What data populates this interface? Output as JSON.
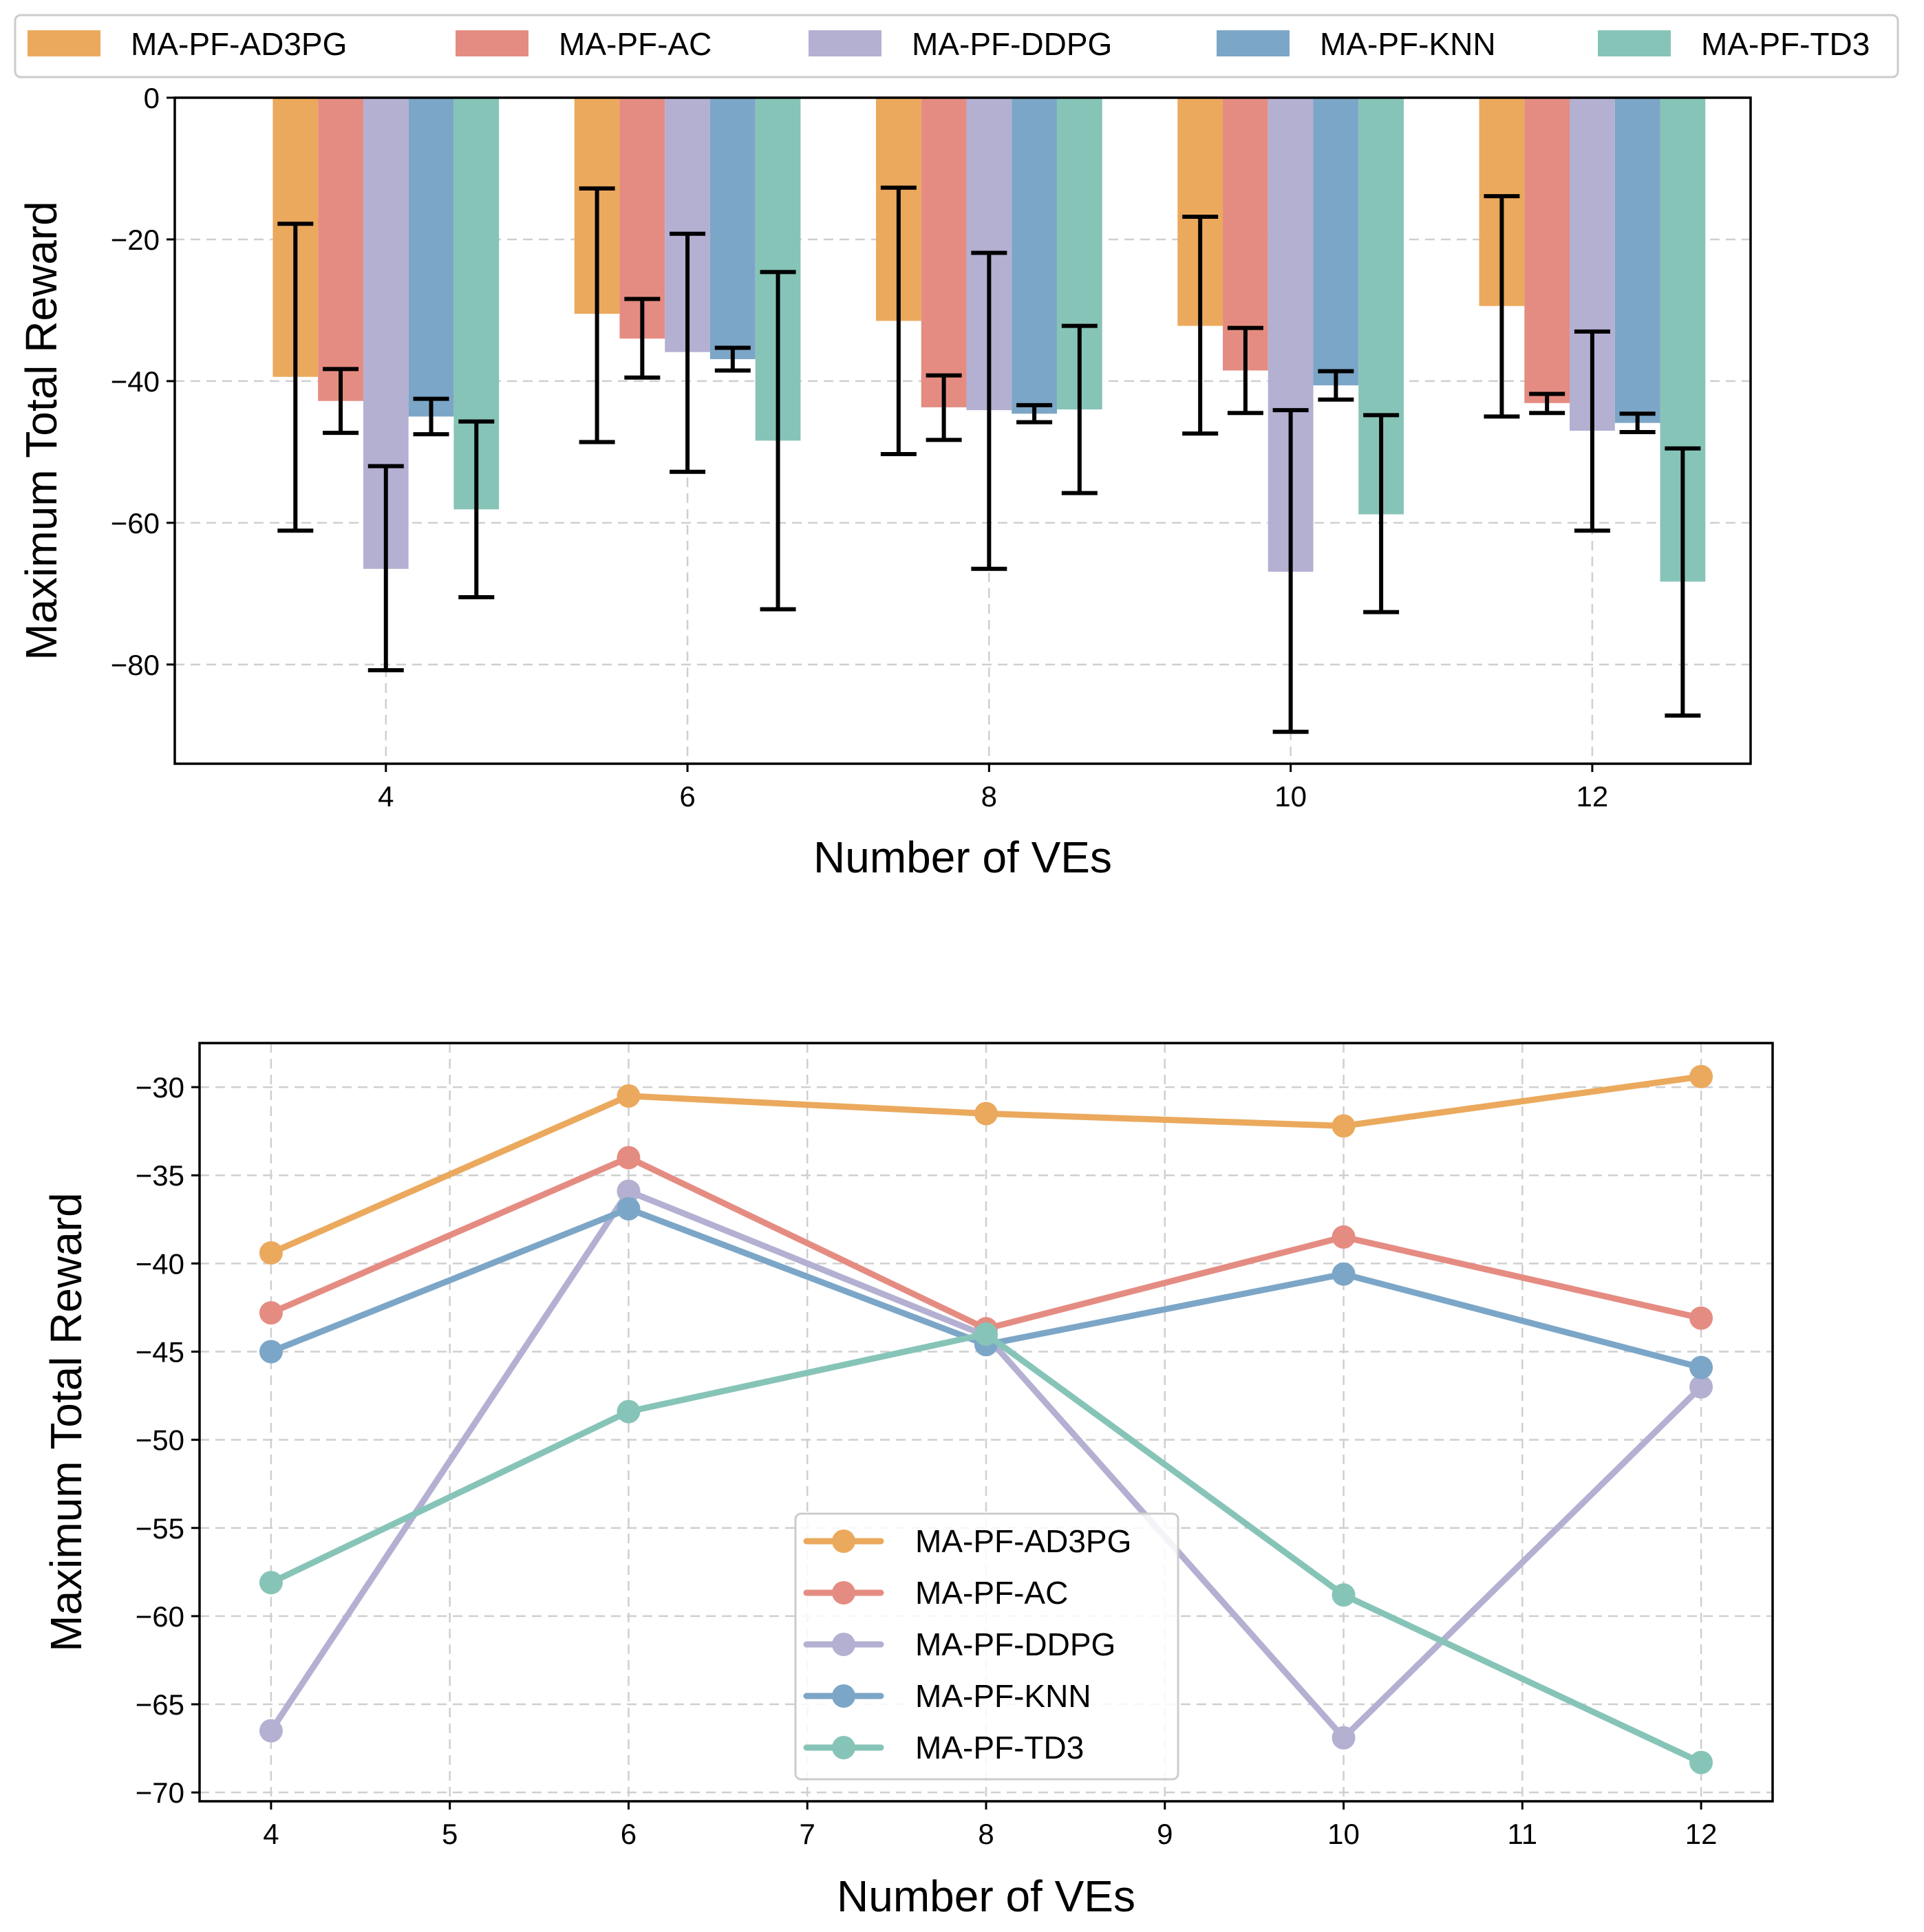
{
  "chart_data": [
    {
      "type": "bar",
      "xlabel": "Number of VEs",
      "ylabel": "Maximum Total Reward",
      "categories": [
        "4",
        "6",
        "8",
        "10",
        "12"
      ],
      "ylim": [
        -94,
        0
      ],
      "yticks": [
        0,
        -20,
        -40,
        -60,
        -80
      ],
      "yticklabels": [
        "0",
        "−20",
        "−40",
        "−60",
        "−80"
      ],
      "grid": true,
      "legend_position": "top, outside, single row",
      "series": [
        {
          "name": "MA-PF-AD3PG",
          "color": "#EBA95D",
          "values": [
            -39.4,
            -30.5,
            -31.5,
            -32.2,
            -29.4
          ],
          "err_low": [
            -61.1,
            -48.6,
            -50.3,
            -47.4,
            -45.0
          ],
          "err_high": [
            -17.8,
            -12.8,
            -12.7,
            -16.8,
            -13.9
          ]
        },
        {
          "name": "MA-PF-AC",
          "color": "#E58C82",
          "values": [
            -42.8,
            -34.0,
            -43.7,
            -38.5,
            -43.1
          ],
          "err_low": [
            -47.3,
            -39.5,
            -48.3,
            -44.5,
            -44.5
          ],
          "err_high": [
            -38.3,
            -28.4,
            -39.2,
            -32.5,
            -41.8
          ]
        },
        {
          "name": "MA-PF-DDPG",
          "color": "#B3B0D2",
          "values": [
            -66.5,
            -35.9,
            -44.1,
            -66.9,
            -47.0
          ],
          "err_low": [
            -80.8,
            -52.8,
            -66.5,
            -89.5,
            -61.1
          ],
          "err_high": [
            -52.0,
            -19.2,
            -21.9,
            -44.1,
            -33.0
          ]
        },
        {
          "name": "MA-PF-KNN",
          "color": "#7CA6C7",
          "values": [
            -45.0,
            -36.9,
            -44.6,
            -40.6,
            -45.9
          ],
          "err_low": [
            -47.5,
            -38.5,
            -45.8,
            -42.6,
            -47.2
          ],
          "err_high": [
            -42.5,
            -35.3,
            -43.4,
            -38.6,
            -44.6
          ]
        },
        {
          "name": "MA-PF-TD3",
          "color": "#87C4B8",
          "values": [
            -58.1,
            -48.4,
            -44.0,
            -58.8,
            -68.3
          ],
          "err_low": [
            -70.5,
            -72.2,
            -55.8,
            -72.6,
            -87.2
          ],
          "err_high": [
            -45.7,
            -24.6,
            -32.2,
            -44.8,
            -49.5
          ]
        }
      ]
    },
    {
      "type": "line",
      "xlabel": "Number of VEs",
      "ylabel": "Maximum Total Reward",
      "x": [
        4,
        6,
        8,
        10,
        12
      ],
      "xlim": [
        3.6,
        12.4
      ],
      "ylim": [
        -70.5,
        -27.5
      ],
      "xticks": [
        4,
        5,
        6,
        7,
        8,
        9,
        10,
        11,
        12
      ],
      "yticks": [
        -30,
        -35,
        -40,
        -45,
        -50,
        -55,
        -60,
        -65,
        -70
      ],
      "yticklabels": [
        "−30",
        "−35",
        "−40",
        "−45",
        "−50",
        "−55",
        "−60",
        "−65",
        "−70"
      ],
      "grid": true,
      "legend_position": "lower center",
      "series": [
        {
          "name": "MA-PF-AD3PG",
          "color": "#EBA95D",
          "values": [
            -39.4,
            -30.5,
            -31.5,
            -32.2,
            -29.4
          ]
        },
        {
          "name": "MA-PF-AC",
          "color": "#E58C82",
          "values": [
            -42.8,
            -34.0,
            -43.7,
            -38.5,
            -43.1
          ]
        },
        {
          "name": "MA-PF-DDPG",
          "color": "#B3B0D2",
          "values": [
            -66.5,
            -35.9,
            -44.1,
            -66.9,
            -47.0
          ]
        },
        {
          "name": "MA-PF-KNN",
          "color": "#7CA6C7",
          "values": [
            -45.0,
            -36.9,
            -44.6,
            -40.6,
            -45.9
          ]
        },
        {
          "name": "MA-PF-TD3",
          "color": "#87C4B8",
          "values": [
            -58.1,
            -48.4,
            -44.0,
            -58.8,
            -68.3
          ]
        }
      ]
    }
  ]
}
